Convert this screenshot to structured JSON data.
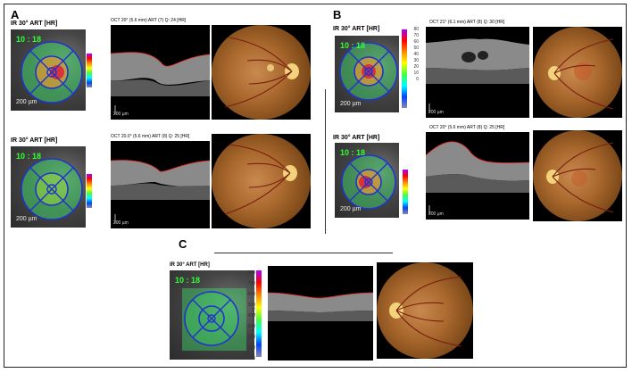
{
  "labels": {
    "a": "A",
    "b": "B",
    "c": "C"
  },
  "ir_title": "IR 30° ART [HR]",
  "ir_codes": {
    "a1": "10 : 18",
    "a2": "10 : 18",
    "b1": "10 : 18",
    "b2": "10 : 18",
    "c": "10 : 18"
  },
  "scale_ir": "200 µm",
  "scale_oct": "200 µm",
  "oct_labels": {
    "a1": "OCT 20° (5.6 mm) ART (7) Q: 24 [HR]",
    "a2": "OCT 20.0° (5.6 mm) ART (8) Q: 25 [HR]",
    "b1": "OCT 21° (6.1 mm) ART (8) Q: 30 [HR]",
    "b2": "OCT 20° (5.6 mm) ART (8) Q: 25 [HR]"
  },
  "colorbar_ticks_b": [
    "80",
    "70",
    "60",
    "50",
    "40",
    "30",
    "20",
    "10",
    "0"
  ],
  "colorbar_ticks_c": [
    "800",
    "700",
    "600",
    "500",
    "400",
    "300",
    "200",
    "100",
    "0"
  ],
  "colorbar_unit": "Thickness [µm]"
}
